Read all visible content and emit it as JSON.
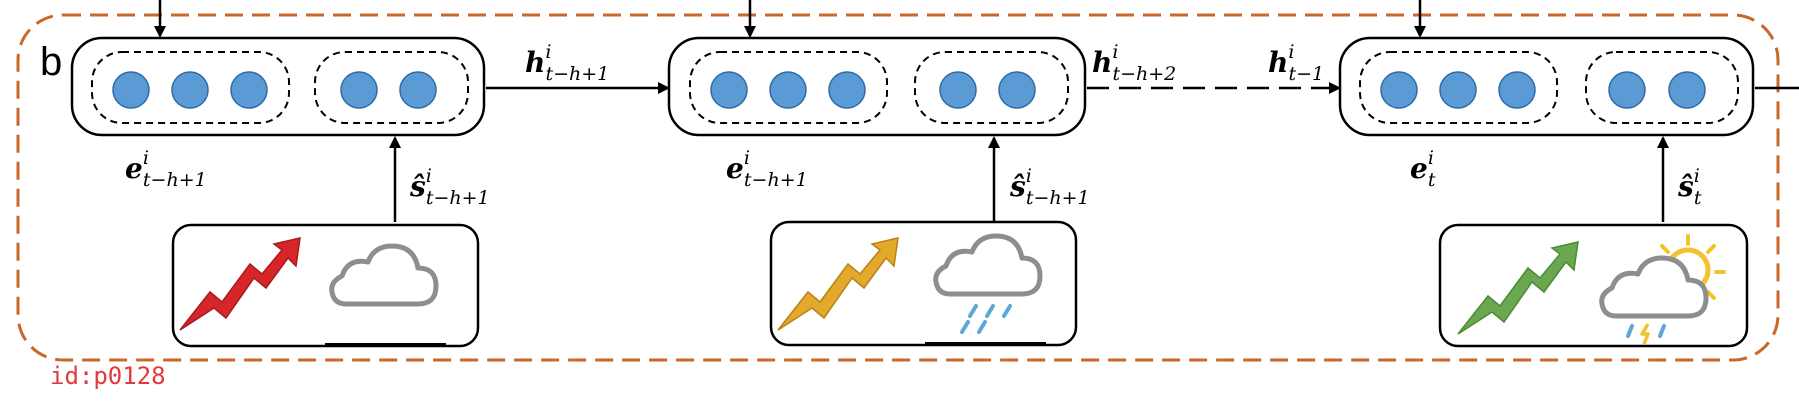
{
  "panel_label": "b",
  "id_tag": "id:p0128",
  "colors": {
    "frame": "#c8682a",
    "node": "#5b9bd5",
    "node_stroke": "#2f6aa6",
    "arrow_red": "#d7262a",
    "arrow_gold": "#e2a92a",
    "arrow_green": "#6aa84f",
    "cloud": "#8e8e8e",
    "rain": "#5fa6d8",
    "sun": "#f2c32e"
  },
  "steps": [
    {
      "embedding": {
        "main": "e",
        "sup": "i",
        "sub": "t−h+1"
      },
      "state": {
        "main": "ŝ",
        "sup": "i",
        "sub": "t−h+1"
      },
      "trend_icon": "red-rising-trend-arrow-icon",
      "weather_icon": "cloudy-icon"
    },
    {
      "embedding": {
        "main": "e",
        "sup": "i",
        "sub": "t−h+1"
      },
      "state": {
        "main": "ŝ",
        "sup": "i",
        "sub": "t−h+1"
      },
      "trend_icon": "gold-rising-trend-arrow-icon",
      "weather_icon": "rainy-icon"
    },
    {
      "embedding": {
        "main": "e",
        "sup": "i",
        "sub": "t"
      },
      "state": {
        "main": "ŝ",
        "sup": "i",
        "sub": "t"
      },
      "trend_icon": "green-rising-trend-arrow-icon",
      "weather_icon": "thunderstorm-sun-icon"
    }
  ],
  "hidden": [
    {
      "main": "h",
      "sup": "i",
      "sub": "t−h+1"
    },
    {
      "main": "h",
      "sup": "i",
      "sub": "t−h+2"
    },
    {
      "main": "h",
      "sup": "i",
      "sub": "t−1"
    }
  ]
}
